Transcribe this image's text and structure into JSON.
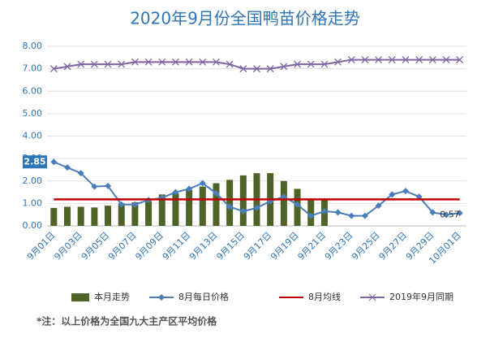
{
  "chart_data": {
    "type": "bar",
    "title": "2020年9月份全国鸭苗价格走势",
    "categories": [
      "9月01日",
      null,
      "9月03日",
      null,
      "9月05日",
      null,
      "9月07日",
      null,
      "9月09日",
      null,
      "9月11日",
      null,
      "9月13日",
      null,
      "9月15日",
      null,
      "9月17日",
      null,
      "9月19日",
      null,
      "9月21日",
      null,
      "9月23日",
      null,
      "9月25日",
      null,
      "9月27日",
      null,
      "9月29日",
      null,
      "10月01日"
    ],
    "ylim": [
      0,
      8
    ],
    "yticks": [
      {
        "value": 0,
        "label": "0.00"
      },
      {
        "value": 1,
        "label": "1.00"
      },
      {
        "value": 2,
        "label": "2.00"
      },
      {
        "value": 3,
        "label": "3.00"
      },
      {
        "value": 4,
        "label": "4.00"
      },
      {
        "value": 5,
        "label": "5.00"
      },
      {
        "value": 6,
        "label": "6.00"
      },
      {
        "value": 7,
        "label": "7.00"
      },
      {
        "value": 8,
        "label": "8.00"
      }
    ],
    "series": [
      {
        "name": "本月走势",
        "type": "bar",
        "color": "#4f6228",
        "values": [
          0.8,
          0.85,
          0.85,
          0.82,
          0.9,
          1.0,
          1.05,
          1.1,
          1.4,
          1.45,
          1.6,
          1.75,
          1.9,
          2.05,
          2.25,
          2.35,
          2.35,
          2.0,
          1.65,
          1.2,
          1.2,
          null,
          null,
          null,
          null,
          null,
          null,
          null,
          null,
          null,
          null
        ]
      },
      {
        "name": "8月每日价格",
        "type": "line",
        "marker": "diamond",
        "color": "#4a7ebb",
        "values": [
          2.85,
          2.6,
          2.35,
          1.75,
          1.78,
          0.95,
          0.95,
          1.15,
          1.25,
          1.5,
          1.65,
          1.9,
          1.45,
          0.85,
          0.65,
          0.8,
          1.1,
          1.3,
          0.95,
          0.45,
          0.65,
          0.6,
          0.45,
          0.45,
          0.9,
          1.4,
          1.55,
          1.3,
          0.6,
          0.5,
          0.57
        ]
      },
      {
        "name": "8月均线",
        "type": "line",
        "marker": "none",
        "color": "#c00000",
        "values": [
          1.18,
          1.18,
          1.18,
          1.18,
          1.18,
          1.18,
          1.18,
          1.18,
          1.18,
          1.18,
          1.18,
          1.18,
          1.18,
          1.18,
          1.18,
          1.18,
          1.18,
          1.18,
          1.18,
          1.18,
          1.18,
          1.18,
          1.18,
          1.18,
          1.18,
          1.18,
          1.18,
          1.18,
          1.18,
          1.18,
          1.18
        ]
      },
      {
        "name": "2019年9月同期",
        "type": "line",
        "marker": "x",
        "color": "#8064a2",
        "values": [
          7.0,
          7.1,
          7.2,
          7.2,
          7.2,
          7.2,
          7.3,
          7.3,
          7.3,
          7.3,
          7.3,
          7.3,
          7.3,
          7.2,
          7.0,
          7.0,
          7.0,
          7.1,
          7.2,
          7.2,
          7.2,
          7.3,
          7.4,
          7.4,
          7.4,
          7.4,
          7.4,
          7.4,
          7.4,
          7.4,
          7.4
        ]
      }
    ],
    "note": "*注：以上价格为全国九大主产区平均价格"
  }
}
